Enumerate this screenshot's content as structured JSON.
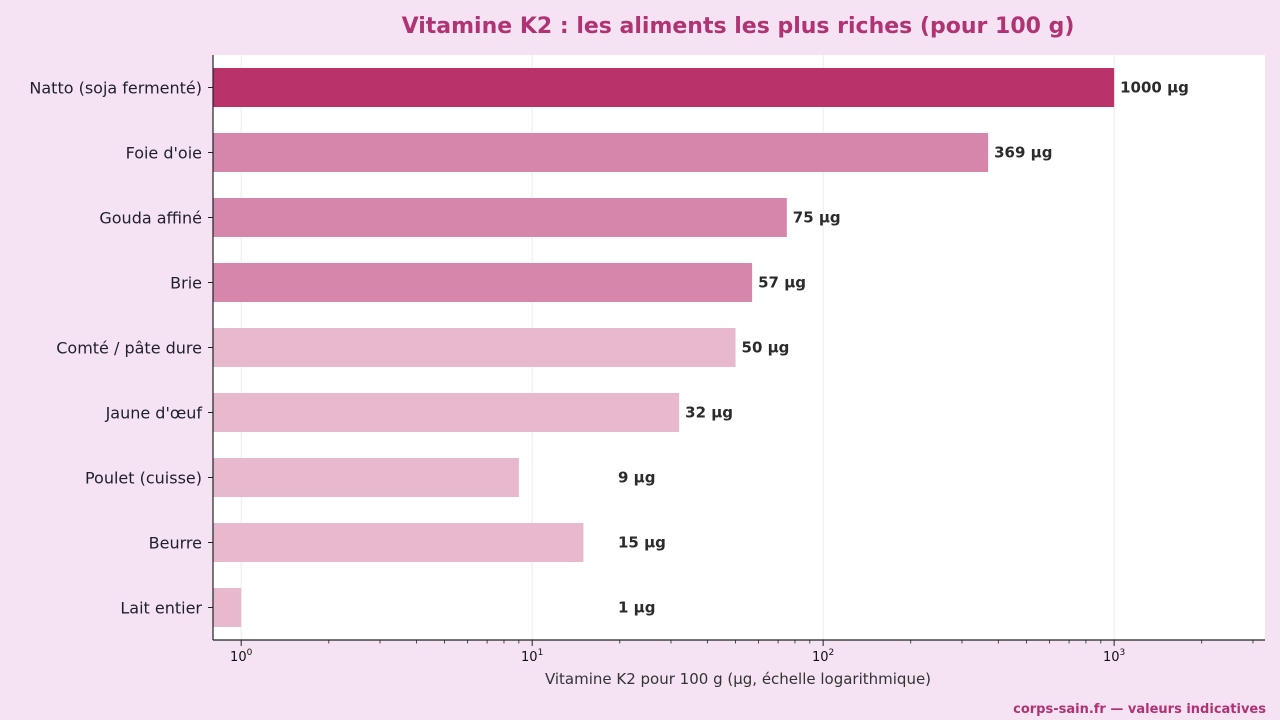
{
  "chart_data": {
    "type": "bar",
    "orientation": "horizontal",
    "title": "Vitamine K2 : les aliments les plus riches (pour 100 g)",
    "xlabel": "Vitamine K2 pour 100 g (µg, échelle logarithmique)",
    "ylabel": "",
    "x_scale": "log",
    "xlim": [
      0.8,
      3300
    ],
    "xticks": [
      {
        "base": "10",
        "exp": "0",
        "value": 1
      },
      {
        "base": "10",
        "exp": "1",
        "value": 10
      },
      {
        "base": "10",
        "exp": "2",
        "value": 100
      },
      {
        "base": "10",
        "exp": "3",
        "value": 1000
      }
    ],
    "grid": "vertical major gridlines",
    "categories": [
      "Natto (soja fermenté)",
      "Foie d'oie",
      "Gouda affiné",
      "Brie",
      "Comté / pâte dure",
      "Jaune d'œuf",
      "Poulet (cuisse)",
      "Beurre",
      "Lait entier"
    ],
    "values": [
      1000,
      369,
      75,
      57,
      50,
      32,
      9,
      15,
      1
    ],
    "value_labels": [
      "1000 µg",
      "369 µg",
      "75 µg",
      "57 µg",
      "50 µg",
      "32 µg",
      "9 µg",
      "15 µg",
      "1 µg"
    ],
    "bar_colors": [
      "#b93268",
      "#d586aa",
      "#d586aa",
      "#d586aa",
      "#e8b8ce",
      "#e8b8ce",
      "#e8b8ce",
      "#e8b8ce",
      "#e8b8ce"
    ],
    "footer": "corps-sain.fr — valeurs indicatives"
  },
  "colors": {
    "page_background": "#f5e3f3",
    "plot_background": "#ffffff",
    "title": "#b03374",
    "accent_dark": "#b93268",
    "accent_mid": "#d586aa",
    "accent_light": "#e8b8ce"
  }
}
